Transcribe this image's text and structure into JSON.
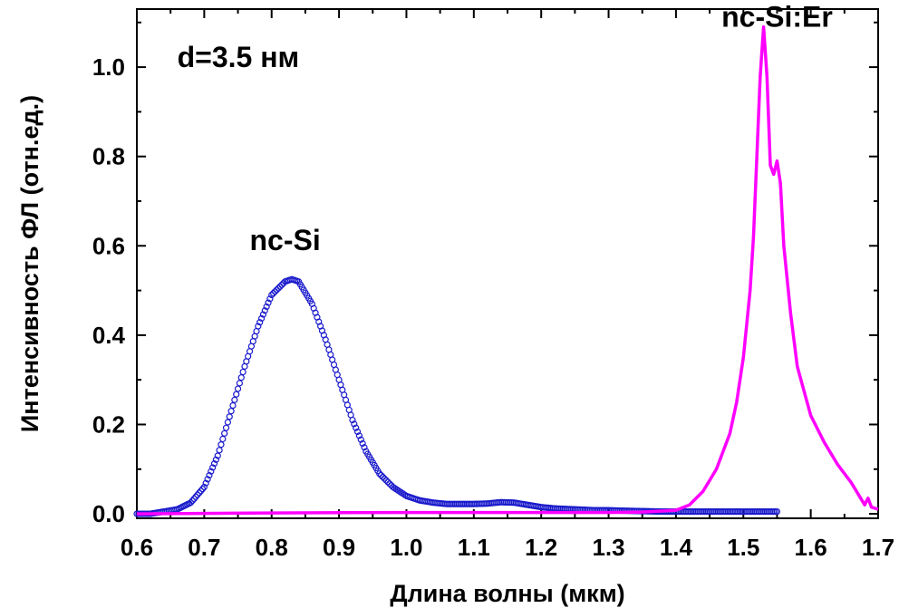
{
  "chart_data": {
    "type": "line",
    "title": "",
    "xlabel": "Длина волны (мкм)",
    "ylabel": "Интенсивность ФЛ (отн.ед.)",
    "xlim": [
      0.6,
      1.7
    ],
    "ylim": [
      -0.01,
      1.13
    ],
    "x_ticks": [
      0.6,
      0.7,
      0.8,
      0.9,
      1.0,
      1.1,
      1.2,
      1.3,
      1.4,
      1.5,
      1.6,
      1.7
    ],
    "x_tick_labels": [
      "0.6",
      "0.7",
      "0.8",
      "0.9",
      "1.0",
      "1.1",
      "1.2",
      "1.3",
      "1.4",
      "1.5",
      "1.6",
      "1.7"
    ],
    "y_ticks": [
      0.0,
      0.2,
      0.4,
      0.6,
      0.8,
      1.0
    ],
    "y_tick_labels": [
      "0.0",
      "0.2",
      "0.4",
      "0.6",
      "0.8",
      "1.0"
    ],
    "grid": false,
    "annotations": [
      {
        "text": "d=3.5 нм",
        "x": 0.66,
        "y": 1.0
      },
      {
        "text": "nc-Si",
        "x": 0.82,
        "y": 0.59
      },
      {
        "text": "nc-Si:Er",
        "x": 1.55,
        "y": 1.09
      }
    ],
    "series": [
      {
        "marker": "open-circle",
        "color": "#1a1acc",
        "x": [
          0.6,
          0.62,
          0.64,
          0.66,
          0.68,
          0.7,
          0.72,
          0.74,
          0.76,
          0.78,
          0.8,
          0.82,
          0.83,
          0.84,
          0.86,
          0.88,
          0.9,
          0.92,
          0.94,
          0.96,
          0.98,
          1.0,
          1.02,
          1.04,
          1.06,
          1.08,
          1.1,
          1.12,
          1.14,
          1.16,
          1.18,
          1.2,
          1.22,
          1.25,
          1.28,
          1.3,
          1.32,
          1.35,
          1.38,
          1.4,
          1.42,
          1.45,
          1.48,
          1.5,
          1.52,
          1.55
        ],
        "y": [
          0.0,
          0.0,
          0.005,
          0.01,
          0.025,
          0.06,
          0.13,
          0.23,
          0.33,
          0.42,
          0.49,
          0.52,
          0.525,
          0.52,
          0.47,
          0.39,
          0.3,
          0.21,
          0.14,
          0.09,
          0.06,
          0.04,
          0.03,
          0.025,
          0.022,
          0.022,
          0.022,
          0.023,
          0.026,
          0.025,
          0.02,
          0.015,
          0.012,
          0.01,
          0.008,
          0.008,
          0.007,
          0.006,
          0.005,
          0.005,
          0.005,
          0.005,
          0.005,
          0.005,
          0.005,
          0.005
        ]
      },
      {
        "marker": "none",
        "color": "#ff00ff",
        "x": [
          0.6,
          0.8,
          1.0,
          1.2,
          1.3,
          1.35,
          1.4,
          1.42,
          1.44,
          1.46,
          1.48,
          1.49,
          1.5,
          1.51,
          1.515,
          1.52,
          1.525,
          1.53,
          1.535,
          1.54,
          1.545,
          1.55,
          1.555,
          1.56,
          1.57,
          1.58,
          1.6,
          1.62,
          1.64,
          1.66,
          1.68,
          1.685,
          1.69,
          1.7
        ],
        "y": [
          0.0,
          0.002,
          0.003,
          0.003,
          0.003,
          0.004,
          0.008,
          0.02,
          0.05,
          0.1,
          0.18,
          0.25,
          0.35,
          0.5,
          0.62,
          0.8,
          0.98,
          1.09,
          0.98,
          0.78,
          0.76,
          0.79,
          0.74,
          0.6,
          0.45,
          0.33,
          0.22,
          0.16,
          0.11,
          0.07,
          0.02,
          0.035,
          0.015,
          0.01
        ]
      }
    ]
  }
}
